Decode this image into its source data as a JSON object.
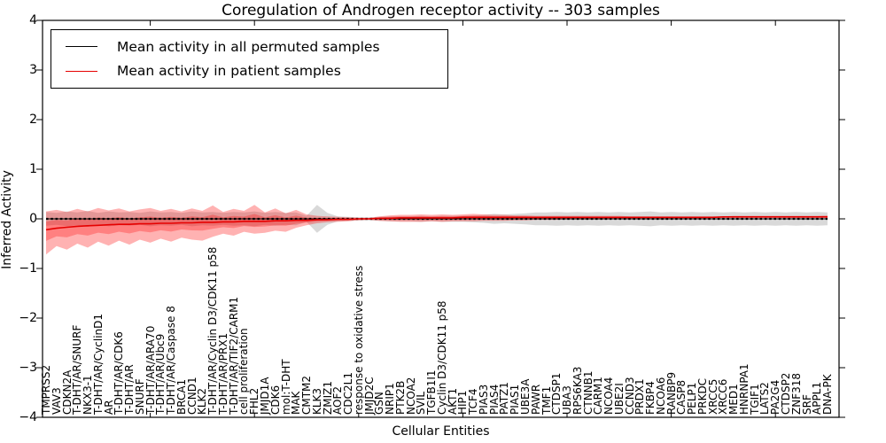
{
  "figure": {
    "title": "Coregulation of Androgen receptor activity -- 303 samples",
    "xlabel": "Cellular Entities",
    "ylabel": "Inferred Activity"
  },
  "chart_data": {
    "type": "line",
    "title": "Coregulation of Androgen receptor activity -- 303 samples",
    "xlabel": "Cellular Entities",
    "ylabel": "Inferred Activity",
    "ylim": [
      -4,
      4
    ],
    "yticks": [
      "4",
      "3",
      "2",
      "1",
      "0",
      "−1",
      "−2",
      "−3",
      "−4"
    ],
    "ytick_values": [
      4,
      3,
      2,
      1,
      0,
      -1,
      -2,
      -3,
      -4
    ],
    "grid": false,
    "legend_position": "upper left",
    "inner_band_scale": 0.45,
    "categories": [
      "TMPRSS2",
      "VAV3",
      "CDKN2A",
      "T-DHT/AR/SNURF",
      "NKX3-1",
      "T-DHT/AR/CyclinD1",
      "AR",
      "T-DHT/AR/CDK6",
      "T-DHT/AR",
      "SNURF",
      "T-DHT/AR/ARA70",
      "T-DHT/AR/Ubc9",
      "T-DHT/AR/Caspase 8",
      "BRCA1",
      "CCND1",
      "KLK2",
      "T-DHT/AR/Cyclin D3/CDK11 p58",
      "T-DHT/AR/PRX1",
      "T-DHT/AR/TIF2/CARM1",
      "cell proliferation",
      "FHL2",
      "JMJD1A",
      "CDK6",
      "mol:T-DHT",
      "MAK",
      "CMTM2",
      "KLK3",
      "ZMIZ1",
      "AOF2",
      "CDC2L1",
      "response to oxidative stress",
      "JMJD2C",
      "GSN",
      "NRIP1",
      "PTK2B",
      "NCOA2",
      "SVIL",
      "TGFB1I1",
      "Cyclin D3/CDK11 p58",
      "AKT1",
      "HIP1",
      "TCF4",
      "PIAS3",
      "PIAS4",
      "PATZ1",
      "PIAS1",
      "UBE3A",
      "PAWR",
      "TMF1",
      "CTDSP1",
      "UBA3",
      "RPS6KA3",
      "CTNNB1",
      "CARM1",
      "NCOA4",
      "UBE2I",
      "CCND3",
      "PRDX1",
      "FKBP4",
      "NCOA6",
      "RANBP9",
      "CASP8",
      "PELP1",
      "PRKDC",
      "XRCC5",
      "XRCC6",
      "MED1",
      "HNRNPA1",
      "TGIF1",
      "LATS2",
      "PA2G4",
      "CTDSP2",
      "ZNF318",
      "SRF",
      "APPL1",
      "DNA-PK"
    ],
    "series": [
      {
        "name": "Mean activity in all permuted samples",
        "color": "#000000",
        "values": [
          0,
          0,
          0,
          0,
          0,
          0,
          0,
          0,
          0,
          0,
          0,
          0,
          0,
          0,
          0,
          0,
          0,
          0,
          0,
          0,
          0,
          0,
          0,
          0,
          0,
          0,
          0,
          0,
          0,
          0,
          0,
          0,
          0,
          0,
          0,
          0,
          0,
          0,
          0,
          0,
          0,
          0,
          0,
          0,
          0,
          0,
          0,
          0,
          0,
          0,
          0,
          0,
          0,
          0,
          0,
          0,
          0,
          0,
          0,
          0,
          0,
          0,
          0,
          0,
          0,
          0,
          0,
          0,
          0,
          0,
          0,
          0,
          0,
          0,
          0,
          0
        ]
      },
      {
        "name": "Mean activity in patient samples",
        "color": "#e60000",
        "values": [
          -0.22,
          -0.19,
          -0.17,
          -0.15,
          -0.14,
          -0.13,
          -0.12,
          -0.11,
          -0.11,
          -0.1,
          -0.1,
          -0.09,
          -0.09,
          -0.08,
          -0.08,
          -0.07,
          -0.07,
          -0.06,
          -0.06,
          -0.05,
          -0.05,
          -0.05,
          -0.04,
          -0.04,
          -0.03,
          -0.03,
          -0.02,
          -0.02,
          -0.01,
          -0.01,
          0,
          0,
          0.01,
          0.01,
          0.02,
          0.02,
          0.02,
          0.02,
          0.02,
          0.02,
          0.03,
          0.03,
          0.03,
          0.03,
          0.03,
          0.03,
          0.03,
          0.03,
          0.03,
          0.03,
          0.03,
          0.03,
          0.03,
          0.03,
          0.03,
          0.03,
          0.03,
          0.03,
          0.03,
          0.03,
          0.03,
          0.03,
          0.03,
          0.03,
          0.03,
          0.04,
          0.04,
          0.04,
          0.04,
          0.04,
          0.04,
          0.04,
          0.04,
          0.04,
          0.04,
          0.04
        ]
      }
    ],
    "bands": [
      {
        "name": "permuted-samples-std",
        "color": "rgba(128,128,128,0.30)",
        "upper": [
          0.14,
          0.12,
          0.15,
          0.13,
          0.16,
          0.12,
          0.15,
          0.13,
          0.14,
          0.12,
          0.15,
          0.13,
          0.14,
          0.12,
          0.15,
          0.13,
          0.14,
          0.12,
          0.14,
          0.13,
          0.15,
          0.12,
          0.14,
          0.12,
          0.13,
          0.06,
          0.28,
          0.12,
          0.05,
          0.04,
          0.03,
          0.03,
          0.04,
          0.05,
          0.05,
          0.05,
          0.06,
          0.05,
          0.06,
          0.06,
          0.06,
          0.07,
          0.08,
          0.1,
          0.09,
          0.1,
          0.11,
          0.13,
          0.13,
          0.14,
          0.13,
          0.14,
          0.13,
          0.14,
          0.13,
          0.14,
          0.13,
          0.14,
          0.15,
          0.13,
          0.14,
          0.13,
          0.14,
          0.13,
          0.14,
          0.13,
          0.14,
          0.13,
          0.14,
          0.13,
          0.14,
          0.13,
          0.14,
          0.13,
          0.14,
          0.13
        ],
        "lower": [
          -0.14,
          -0.12,
          -0.15,
          -0.13,
          -0.16,
          -0.12,
          -0.15,
          -0.13,
          -0.14,
          -0.12,
          -0.15,
          -0.13,
          -0.14,
          -0.12,
          -0.15,
          -0.13,
          -0.14,
          -0.12,
          -0.14,
          -0.13,
          -0.15,
          -0.12,
          -0.14,
          -0.12,
          -0.13,
          -0.06,
          -0.28,
          -0.12,
          -0.05,
          -0.04,
          -0.03,
          -0.03,
          -0.04,
          -0.05,
          -0.05,
          -0.05,
          -0.06,
          -0.05,
          -0.06,
          -0.06,
          -0.06,
          -0.07,
          -0.08,
          -0.1,
          -0.09,
          -0.1,
          -0.11,
          -0.13,
          -0.13,
          -0.14,
          -0.13,
          -0.14,
          -0.13,
          -0.14,
          -0.13,
          -0.14,
          -0.13,
          -0.14,
          -0.15,
          -0.13,
          -0.14,
          -0.13,
          -0.14,
          -0.13,
          -0.14,
          -0.13,
          -0.14,
          -0.13,
          -0.14,
          -0.13,
          -0.14,
          -0.13,
          -0.14,
          -0.13,
          -0.14,
          -0.13
        ]
      },
      {
        "name": "patient-samples-std",
        "color": "rgba(255,0,0,0.30)",
        "inner_color": "rgba(255,0,0,0.28)",
        "upper": [
          0.15,
          0.18,
          0.14,
          0.2,
          0.15,
          0.22,
          0.17,
          0.21,
          0.15,
          0.19,
          0.22,
          0.16,
          0.2,
          0.15,
          0.21,
          0.16,
          0.27,
          0.14,
          0.2,
          0.16,
          0.28,
          0.13,
          0.21,
          0.11,
          0.18,
          0.09,
          0.06,
          0.05,
          0.04,
          0.03,
          0.02,
          0.02,
          0.05,
          0.07,
          0.08,
          0.08,
          0.09,
          0.08,
          0.09,
          0.08,
          0.09,
          0.1,
          0.09,
          0.08,
          0.08,
          0.07,
          0.07,
          0.06,
          0.06,
          0.06,
          0.06,
          0.06,
          0.06,
          0.06,
          0.06,
          0.06,
          0.05,
          0.05,
          0.05,
          0.05,
          0.05,
          0.05,
          0.05,
          0.05,
          0.05,
          0.05,
          0.06,
          0.06,
          0.06,
          0.06,
          0.06,
          0.06,
          0.06,
          0.06,
          0.06,
          0.07
        ],
        "lower": [
          -0.72,
          -0.55,
          -0.62,
          -0.5,
          -0.58,
          -0.46,
          -0.54,
          -0.44,
          -0.52,
          -0.42,
          -0.48,
          -0.4,
          -0.46,
          -0.38,
          -0.42,
          -0.44,
          -0.36,
          -0.3,
          -0.34,
          -0.26,
          -0.3,
          -0.28,
          -0.24,
          -0.26,
          -0.18,
          -0.13,
          -0.09,
          -0.07,
          -0.06,
          -0.05,
          -0.03,
          -0.02,
          -0.04,
          -0.05,
          -0.06,
          -0.06,
          -0.06,
          -0.05,
          -0.06,
          -0.05,
          -0.05,
          -0.05,
          -0.04,
          -0.04,
          -0.04,
          -0.03,
          -0.03,
          -0.02,
          -0.02,
          -0.02,
          -0.01,
          -0.01,
          -0.01,
          -0.01,
          -0.01,
          0,
          0,
          0,
          0.01,
          0.01,
          0.01,
          0.01,
          0.01,
          0.01,
          0.02,
          0.02,
          0.02,
          0.02,
          0.02,
          0.02,
          0.02,
          0.02,
          0.02,
          0.02,
          0.02,
          0.02
        ]
      }
    ]
  }
}
